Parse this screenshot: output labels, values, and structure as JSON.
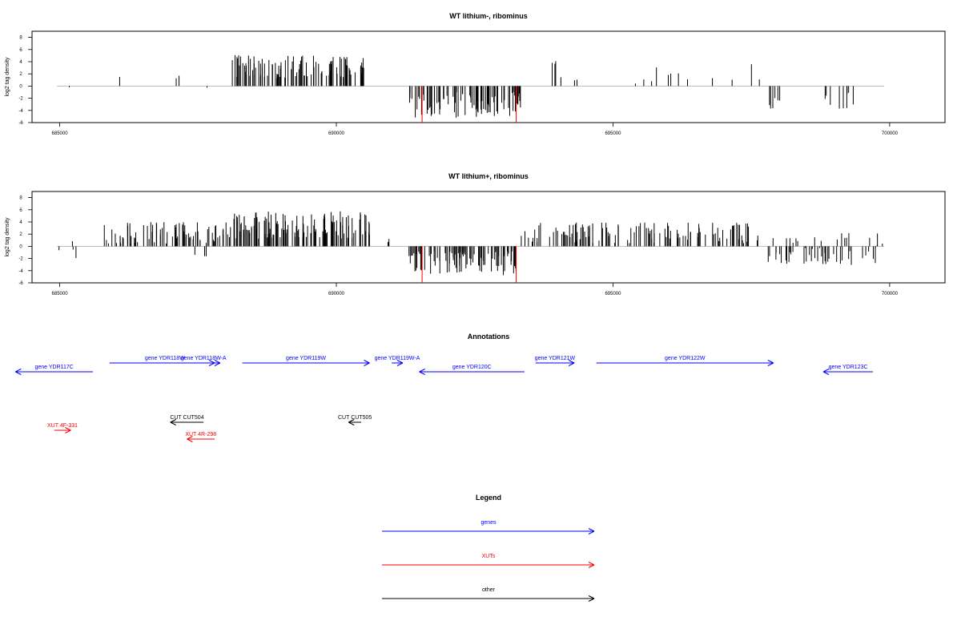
{
  "colors": {
    "genes": "#0000ff",
    "xuts": "#ff0000",
    "other": "#000000",
    "bars": "#000000",
    "highlight": "#ff0000",
    "axis": "#000000",
    "baseline": "#999999"
  },
  "chart_data": [
    {
      "type": "bar",
      "title": "WT lithium-, ribominus",
      "ylabel": "log2 tag density",
      "xlim": [
        684500,
        701000
      ],
      "ylim": [
        -6,
        9
      ],
      "x_ticks": [
        685000,
        690000,
        695000,
        700000
      ],
      "y_ticks": [
        -6,
        -4,
        -2,
        0,
        2,
        4,
        6,
        8
      ],
      "highlight_lines": [
        691550,
        693250
      ],
      "series_segments": [
        {
          "start": 684950,
          "end": 685000,
          "density": 0.05,
          "mean": -2.5,
          "amp": 1.0
        },
        {
          "start": 685100,
          "end": 685400,
          "density": 0.02,
          "mean": -1.5,
          "amp": 2.0
        },
        {
          "start": 685900,
          "end": 686300,
          "density": 0.03,
          "mean": 2.0,
          "amp": 1.2
        },
        {
          "start": 686300,
          "end": 687500,
          "density": 0.02,
          "mean": 2.3,
          "amp": 1.8
        },
        {
          "start": 687600,
          "end": 688000,
          "density": 0.02,
          "mean": -0.5,
          "amp": 2.0
        },
        {
          "start": 688100,
          "end": 690500,
          "density": 0.45,
          "mean": 3.2,
          "amp": 1.9
        },
        {
          "start": 690550,
          "end": 690600,
          "density": 0.02,
          "mean": 6.5,
          "amp": 0.5
        },
        {
          "start": 690800,
          "end": 691100,
          "density": 0.01,
          "mean": 2.5,
          "amp": 1.0
        },
        {
          "start": 691300,
          "end": 693350,
          "density": 0.45,
          "mean": -3.0,
          "amp": 2.2
        },
        {
          "start": 693500,
          "end": 694600,
          "density": 0.05,
          "mean": 2.5,
          "amp": 1.6
        },
        {
          "start": 694600,
          "end": 697200,
          "density": 0.04,
          "mean": 1.8,
          "amp": 1.5
        },
        {
          "start": 697200,
          "end": 697700,
          "density": 0.04,
          "mean": 2.3,
          "amp": 1.5
        },
        {
          "start": 697800,
          "end": 699500,
          "density": 0.09,
          "mean": -2.5,
          "amp": 1.5
        },
        {
          "start": 699700,
          "end": 699800,
          "density": 0.03,
          "mean": 2.0,
          "amp": 0.5
        }
      ],
      "seed": 17
    },
    {
      "type": "bar",
      "title": "WT lithium+, ribominus",
      "ylabel": "log2 tag density",
      "xlim": [
        684500,
        701000
      ],
      "ylim": [
        -6,
        9
      ],
      "x_ticks": [
        685000,
        690000,
        695000,
        700000
      ],
      "y_ticks": [
        -6,
        -4,
        -2,
        0,
        2,
        4,
        6,
        8
      ],
      "highlight_lines": [
        691550,
        693250
      ],
      "series_segments": [
        {
          "start": 684950,
          "end": 685100,
          "density": 0.08,
          "mean": -1.0,
          "amp": 2.5
        },
        {
          "start": 685100,
          "end": 685800,
          "density": 0.04,
          "mean": 0.0,
          "amp": 2.0
        },
        {
          "start": 685800,
          "end": 688100,
          "density": 0.35,
          "mean": 2.2,
          "amp": 1.8
        },
        {
          "start": 687200,
          "end": 688000,
          "density": 0.04,
          "mean": -1.5,
          "amp": 0.8
        },
        {
          "start": 688100,
          "end": 690600,
          "density": 0.55,
          "mean": 3.5,
          "amp": 2.3
        },
        {
          "start": 690600,
          "end": 691000,
          "density": 0.08,
          "mean": 1.5,
          "amp": 1.0
        },
        {
          "start": 691300,
          "end": 693300,
          "density": 0.45,
          "mean": -2.8,
          "amp": 2.0
        },
        {
          "start": 693300,
          "end": 697700,
          "density": 0.28,
          "mean": 2.2,
          "amp": 1.7
        },
        {
          "start": 697800,
          "end": 699900,
          "density": 0.2,
          "mean": -1.6,
          "amp": 1.5
        },
        {
          "start": 697800,
          "end": 699900,
          "density": 0.08,
          "mean": 1.2,
          "amp": 1.0
        }
      ],
      "seed": 41
    }
  ],
  "annotations": {
    "title": "Annotations",
    "xlim": [
      684500,
      701000
    ],
    "features": [
      {
        "label": "gene YDR117C",
        "kind": "genes",
        "start": 684200,
        "end": 685600,
        "strand": "-",
        "row": 1
      },
      {
        "label": "gene YDR118W",
        "kind": "genes",
        "start": 685900,
        "end": 687900,
        "strand": "+",
        "row": 0
      },
      {
        "label": "gene YDR118W-A",
        "kind": "genes",
        "start": 687400,
        "end": 687800,
        "strand": "+",
        "row": 0
      },
      {
        "label": "gene YDR119W",
        "kind": "genes",
        "start": 688300,
        "end": 690600,
        "strand": "+",
        "row": 0
      },
      {
        "label": "gene YDR119W-A",
        "kind": "genes",
        "start": 691000,
        "end": 691200,
        "strand": "+",
        "row": 0
      },
      {
        "label": "gene YDR120C",
        "kind": "genes",
        "start": 691500,
        "end": 693400,
        "strand": "-",
        "row": 1
      },
      {
        "label": "gene YDR121W",
        "kind": "genes",
        "start": 693600,
        "end": 694300,
        "strand": "+",
        "row": 0
      },
      {
        "label": "gene YDR122W",
        "kind": "genes",
        "start": 694700,
        "end": 697900,
        "strand": "+",
        "row": 0
      },
      {
        "label": "gene YDR123C",
        "kind": "genes",
        "start": 698800,
        "end": 699700,
        "strand": "-",
        "row": 1
      },
      {
        "label": "CUT CUT504",
        "kind": "other",
        "start": 687000,
        "end": 687600,
        "strand": "-",
        "row": 0
      },
      {
        "label": "CUT CUT505",
        "kind": "other",
        "start": 690220,
        "end": 690450,
        "strand": "-",
        "row": 0
      },
      {
        "label": "XUT 4F-331",
        "kind": "xuts",
        "start": 684900,
        "end": 685200,
        "strand": "+",
        "row": 1
      },
      {
        "label": "XUT 4R-298",
        "kind": "xuts",
        "start": 687300,
        "end": 687800,
        "strand": "-",
        "row": 2
      }
    ]
  },
  "legend": {
    "title": "Legend",
    "items": [
      {
        "label": "genes",
        "kind": "genes"
      },
      {
        "label": "XUTs",
        "kind": "xuts"
      },
      {
        "label": "other",
        "kind": "other"
      }
    ]
  }
}
